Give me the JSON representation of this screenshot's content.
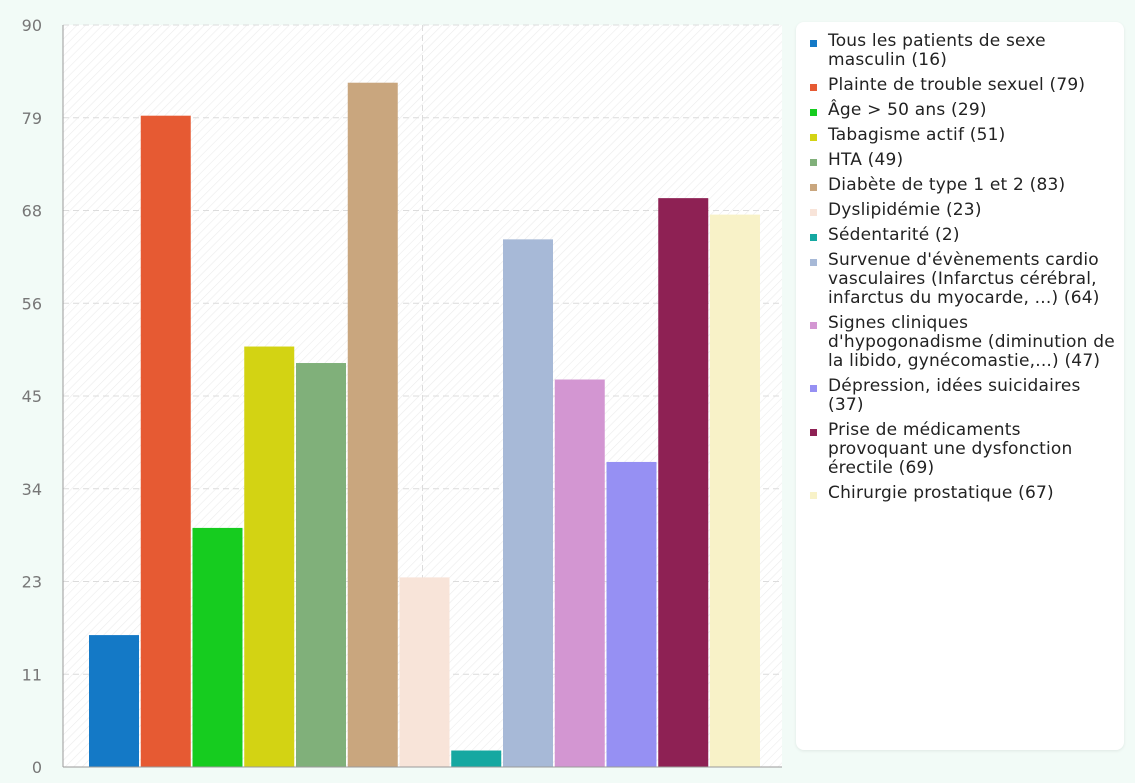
{
  "chart_data": {
    "type": "bar",
    "categories": [
      "Tous les patients de sexe masculin (16)",
      "Plainte de trouble sexuel (79)",
      "Âge > 50 ans (29)",
      "Tabagisme actif (51)",
      "HTA (49)",
      "Diabète de type 1 et 2 (83)",
      "Dyslipidémie (23)",
      "Sédentarité (2)",
      "Survenue d'évènements cardio vasculaires (Infarctus cérébral, infarctus du myocarde, ...) (64)",
      "Signes cliniques d'hypogonadisme (diminution de la libido, gynécomastie,...) (47)",
      "Dépression, idées suicidaires (37)",
      "Prise de médicaments provoquant une dysfonction érectile (69)",
      "Chirurgie prostatique (67)"
    ],
    "values": [
      16,
      79,
      29,
      51,
      49,
      83,
      23,
      2,
      64,
      47,
      37,
      69,
      67
    ],
    "colors": [
      "#1479c6",
      "#e65a33",
      "#16cc1f",
      "#d3d313",
      "#80b07a",
      "#c9a67e",
      "#f8e4d9",
      "#15a8a1",
      "#a7b9d7",
      "#d396d2",
      "#9690f3",
      "#8e2154",
      "#f8f2c8"
    ],
    "y_ticks": [
      "0",
      "11",
      "23",
      "34",
      "45",
      "56",
      "68",
      "79",
      "90"
    ],
    "ylim": [
      0,
      90
    ],
    "grid": true,
    "title": "",
    "xlabel": "",
    "ylabel": "",
    "legend_position": "right"
  }
}
